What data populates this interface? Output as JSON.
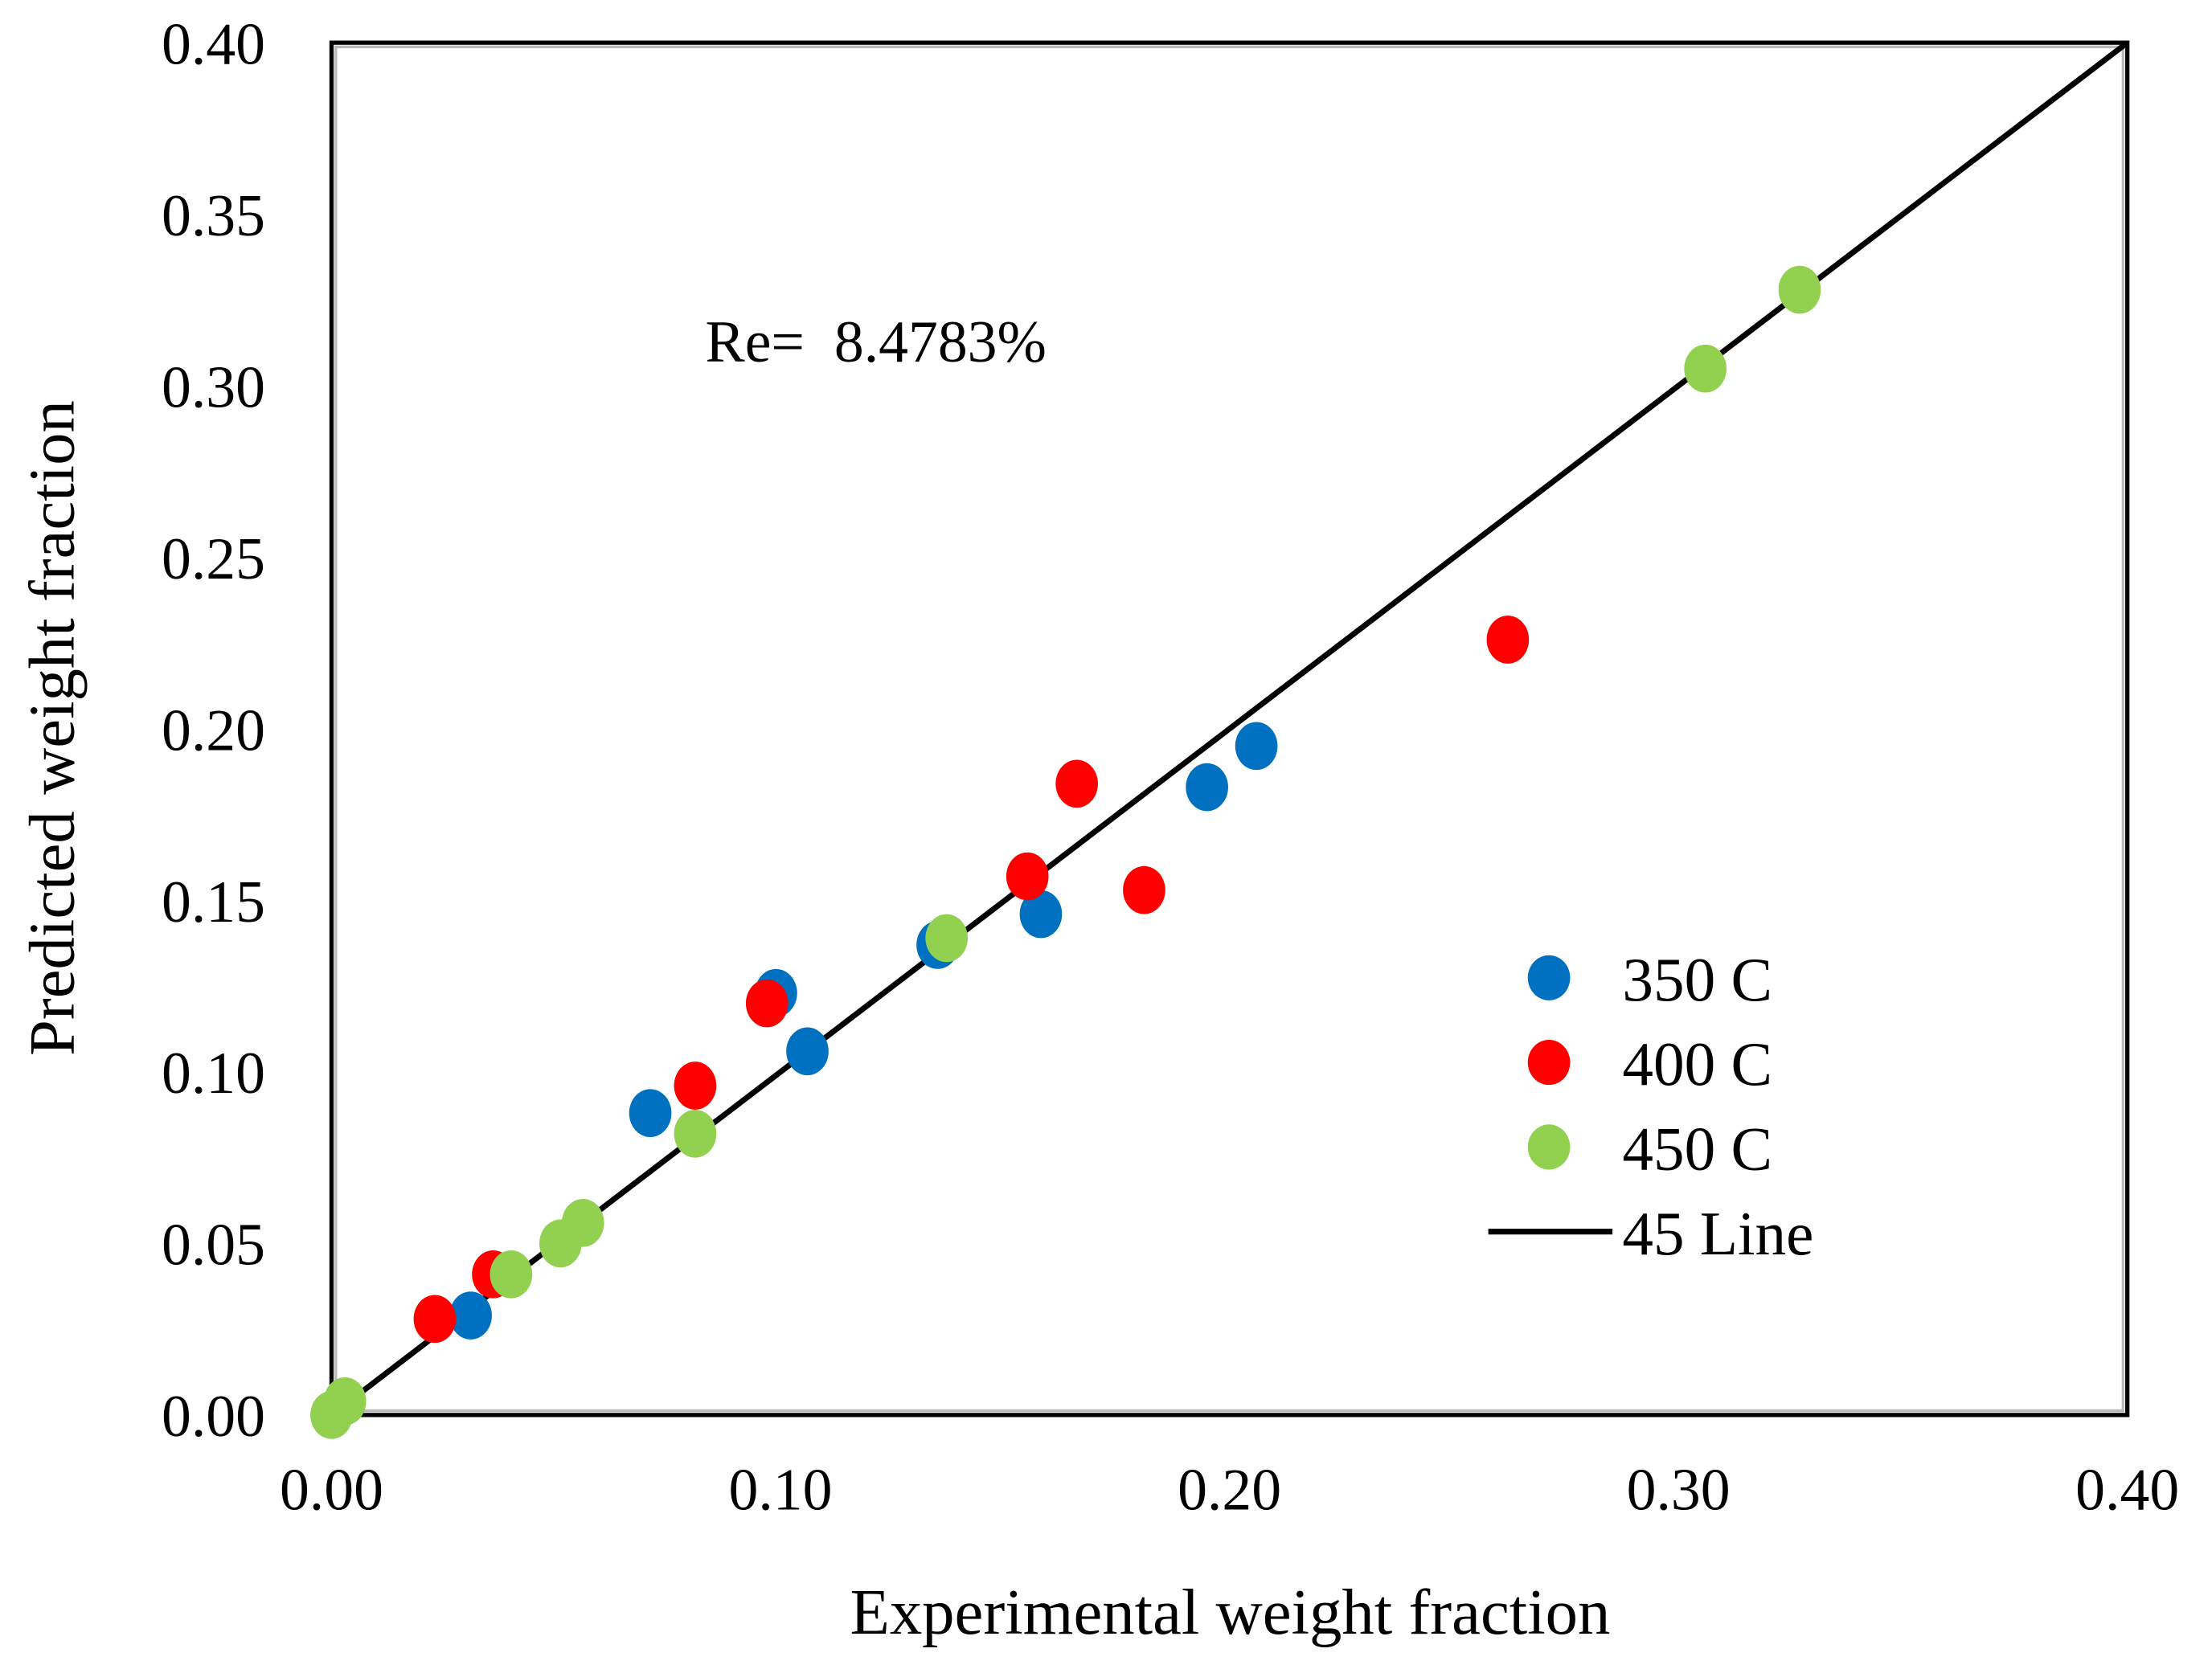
{
  "chart_data": {
    "type": "scatter",
    "title": "",
    "xlabel": "Experimental weight fraction",
    "ylabel": "Predicted weight fraction",
    "xlim": [
      0,
      0.4
    ],
    "ylim": [
      0,
      0.4
    ],
    "xticks": [
      "0.00",
      "0.10",
      "0.20",
      "0.30",
      "0.40"
    ],
    "xtick_values": [
      0,
      0.1,
      0.2,
      0.3,
      0.4
    ],
    "yticks": [
      "0.00",
      "0.05",
      "0.10",
      "0.15",
      "0.20",
      "0.25",
      "0.30",
      "0.35",
      "0.40"
    ],
    "ytick_values": [
      0,
      0.05,
      0.1,
      0.15,
      0.2,
      0.25,
      0.3,
      0.35,
      0.4
    ],
    "grid": false,
    "annotation": "Re=  8.4783%",
    "legend_position": "right",
    "series": [
      {
        "name": "350 C",
        "color": "#0070C0",
        "points": [
          [
            0.031,
            0.029
          ],
          [
            0.071,
            0.088
          ],
          [
            0.099,
            0.123
          ],
          [
            0.106,
            0.106
          ],
          [
            0.135,
            0.137
          ],
          [
            0.158,
            0.146
          ],
          [
            0.195,
            0.183
          ],
          [
            0.206,
            0.195
          ]
        ]
      },
      {
        "name": "400 C",
        "color": "#FF0000",
        "points": [
          [
            0.023,
            0.028
          ],
          [
            0.036,
            0.041
          ],
          [
            0.081,
            0.096
          ],
          [
            0.097,
            0.12
          ],
          [
            0.155,
            0.157
          ],
          [
            0.166,
            0.184
          ],
          [
            0.181,
            0.153
          ],
          [
            0.262,
            0.226
          ]
        ]
      },
      {
        "name": "450 C",
        "color": "#92D050",
        "points": [
          [
            0,
            0
          ],
          [
            0.003,
            0.004
          ],
          [
            0.04,
            0.041
          ],
          [
            0.051,
            0.05
          ],
          [
            0.056,
            0.056
          ],
          [
            0.081,
            0.082
          ],
          [
            0.137,
            0.139
          ],
          [
            0.306,
            0.305
          ],
          [
            0.327,
            0.328
          ]
        ]
      }
    ],
    "line": {
      "name": "45 Line",
      "color": "#000000",
      "points": [
        [
          0,
          0
        ],
        [
          0.4,
          0.4
        ]
      ]
    }
  }
}
